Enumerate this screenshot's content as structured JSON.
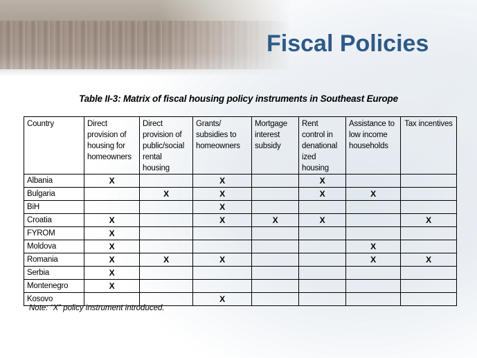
{
  "slide": {
    "title": "Fiscal Policies",
    "caption": "Table II-3: Matrix of fiscal housing policy instruments in Southeast Europe",
    "note": "Note: “X” policy instrument introduced."
  },
  "table": {
    "columns": [
      "Country",
      "Direct provision of housing for homeowners",
      "Direct provision of public/social rental housing",
      "Grants/ subsidies to homeowners",
      "Mortgage interest subsidy",
      "Rent control in denational ized housing",
      "Assistance to low income households",
      "Tax incentives"
    ],
    "rows": [
      [
        "Albania",
        "X",
        "",
        "X",
        "",
        "X",
        "",
        ""
      ],
      [
        "Bulgaria",
        "",
        "X",
        "X",
        "",
        "X",
        "X",
        ""
      ],
      [
        "BiH",
        "",
        "",
        "X",
        "",
        "",
        "",
        ""
      ],
      [
        "Croatia",
        "X",
        "",
        "X",
        "X",
        "X",
        "",
        "X"
      ],
      [
        "FYROM",
        "X",
        "",
        "",
        "",
        "",
        "",
        ""
      ],
      [
        "Moldova",
        "X",
        "",
        "",
        "",
        "",
        "X",
        ""
      ],
      [
        "Romania",
        "X",
        "X",
        "X",
        "",
        "",
        "X",
        "X"
      ],
      [
        "Serbia",
        "X",
        "",
        "",
        "",
        "",
        "",
        ""
      ],
      [
        "Montenegro",
        "X",
        "",
        "",
        "",
        "",
        "",
        ""
      ],
      [
        "Kosovo",
        "",
        "",
        "X",
        "",
        "",
        "",
        ""
      ]
    ]
  }
}
